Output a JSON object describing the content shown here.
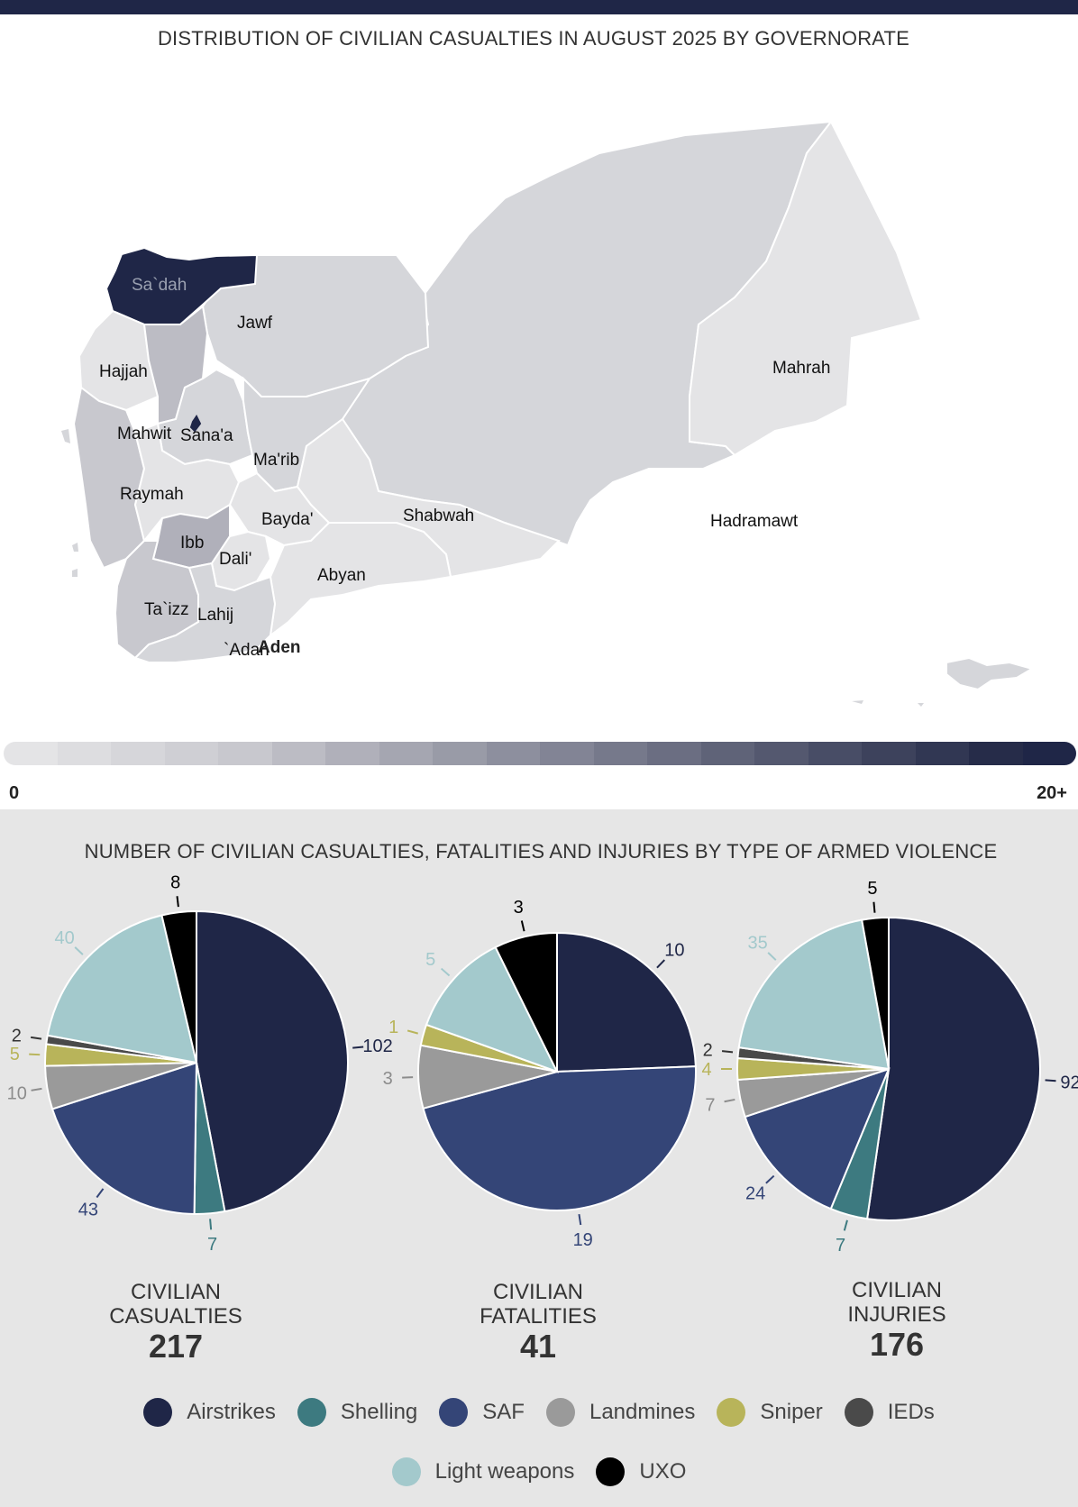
{
  "map": {
    "title": "DISTRIBUTION OF CIVILIAN CASUALTIES IN AUGUST 2025 BY GOVERNORATE",
    "scale_min_label": "0",
    "scale_max_label": "20+",
    "scale_colors": [
      "#e4e4e6",
      "#dddde0",
      "#d6d6da",
      "#cfcfd4",
      "#c8c8ce",
      "#bcbcc4",
      "#b0b0ba",
      "#a5a6b1",
      "#999ba7",
      "#8d8f9e",
      "#828495",
      "#76798b",
      "#6b6e82",
      "#5f6378",
      "#54586f",
      "#484d66",
      "#3d425c",
      "#313753",
      "#262c49",
      "#1f2647"
    ],
    "governorates": [
      {
        "name": "Sa`dah",
        "casualties_level": "20+"
      },
      {
        "name": "Jawf"
      },
      {
        "name": "Hajjah"
      },
      {
        "name": "Mahwit"
      },
      {
        "name": "Sana'a"
      },
      {
        "name": "Ma'rib"
      },
      {
        "name": "Raymah"
      },
      {
        "name": "Bayda'"
      },
      {
        "name": "Ibb"
      },
      {
        "name": "Dali'"
      },
      {
        "name": "Ta`izz"
      },
      {
        "name": "Lahij"
      },
      {
        "name": "`Adan"
      },
      {
        "name": "Aden"
      },
      {
        "name": "Abyan"
      },
      {
        "name": "Shabwah"
      },
      {
        "name": "Hadramawt"
      },
      {
        "name": "Mahrah"
      }
    ]
  },
  "pies_title": "NUMBER OF CIVILIAN CASUALTIES, FATALITIES AND INJURIES BY TYPE OF ARMED VIOLENCE",
  "chart_data": [
    {
      "type": "pie",
      "title": "CIVILIAN CASUALTIES",
      "total": "217",
      "slices": [
        {
          "category": "Airstrikes",
          "value": 102
        },
        {
          "category": "Shelling",
          "value": 7
        },
        {
          "category": "SAF",
          "value": 43
        },
        {
          "category": "Landmines",
          "value": 10
        },
        {
          "category": "Sniper",
          "value": 5
        },
        {
          "category": "IEDs",
          "value": 2
        },
        {
          "category": "Light weapons",
          "value": 40
        },
        {
          "category": "UXO",
          "value": 8
        }
      ]
    },
    {
      "type": "pie",
      "title": "CIVILIAN FATALITIES",
      "total": "41",
      "slices": [
        {
          "category": "Airstrikes",
          "value": 10
        },
        {
          "category": "SAF",
          "value": 19
        },
        {
          "category": "Landmines",
          "value": 3
        },
        {
          "category": "Sniper",
          "value": 1
        },
        {
          "category": "Light weapons",
          "value": 5
        },
        {
          "category": "UXO",
          "value": 3
        }
      ]
    },
    {
      "type": "pie",
      "title": "CIVILIAN INJURIES",
      "total": "176",
      "slices": [
        {
          "category": "Airstrikes",
          "value": 92
        },
        {
          "category": "Shelling",
          "value": 7
        },
        {
          "category": "SAF",
          "value": 24
        },
        {
          "category": "Landmines",
          "value": 7
        },
        {
          "category": "Sniper",
          "value": 4
        },
        {
          "category": "IEDs",
          "value": 2
        },
        {
          "category": "Light weapons",
          "value": 35
        },
        {
          "category": "UXO",
          "value": 5
        }
      ]
    }
  ],
  "legend": [
    {
      "label": "Airstrikes",
      "color": "#1f2647"
    },
    {
      "label": "Shelling",
      "color": "#3d7a80"
    },
    {
      "label": "SAF",
      "color": "#344577"
    },
    {
      "label": "Landmines",
      "color": "#9a9a9a"
    },
    {
      "label": "Sniper",
      "color": "#b8b45a"
    },
    {
      "label": "IEDs",
      "color": "#4a4a4a"
    },
    {
      "label": "Light weapons",
      "color": "#a3c9cc"
    },
    {
      "label": "UXO",
      "color": "#000000"
    }
  ],
  "label_colors": {
    "Airstrikes": "#1f2647",
    "Shelling": "#3d7a80",
    "SAF": "#344577",
    "Landmines": "#8c8c8c",
    "Sniper": "#b8b45a",
    "IEDs": "#333333",
    "Light weapons": "#a3c9cc",
    "UXO": "#000000"
  }
}
